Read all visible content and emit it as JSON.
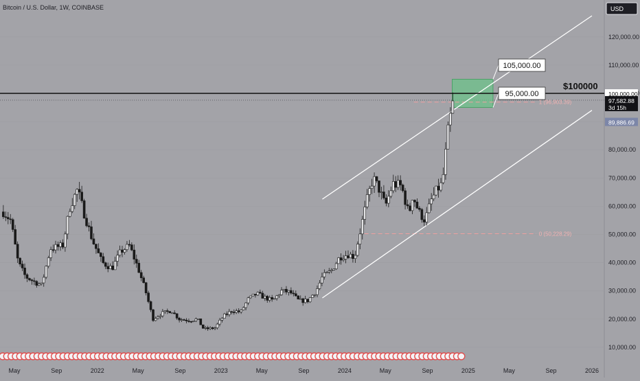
{
  "chart_data": {
    "type": "candlestick",
    "title": "Bitcoin / U.S. Dollar, 1W, COINBASE",
    "currency": "USD",
    "ylim": [
      0,
      132000
    ],
    "y_ticks": [
      {
        "value": 10000,
        "label": "10,000.00"
      },
      {
        "value": 20000,
        "label": "20,000.00"
      },
      {
        "value": 30000,
        "label": "30,000.00"
      },
      {
        "value": 40000,
        "label": "40,000.00"
      },
      {
        "value": 50000,
        "label": "50,000.00"
      },
      {
        "value": 60000,
        "label": "60,000.00"
      },
      {
        "value": 70000,
        "label": "70,000.00"
      },
      {
        "value": 80000,
        "label": "80,000.00"
      },
      {
        "value": 90000,
        "label": "90,000.00"
      },
      {
        "value": 100000,
        "label": "100,000.00"
      },
      {
        "value": 110000,
        "label": "110,000.00"
      },
      {
        "value": 120000,
        "label": "120,000.00"
      }
    ],
    "x_ticks": [
      {
        "t": 2021.33,
        "label": "May"
      },
      {
        "t": 2021.67,
        "label": "Sep"
      },
      {
        "t": 2022.0,
        "label": "2022"
      },
      {
        "t": 2022.33,
        "label": "May"
      },
      {
        "t": 2022.67,
        "label": "Sep"
      },
      {
        "t": 2023.0,
        "label": "2023"
      },
      {
        "t": 2023.33,
        "label": "May"
      },
      {
        "t": 2023.67,
        "label": "Sep"
      },
      {
        "t": 2024.0,
        "label": "2024"
      },
      {
        "t": 2024.33,
        "label": "May"
      },
      {
        "t": 2024.67,
        "label": "Sep"
      },
      {
        "t": 2025.0,
        "label": "2025"
      },
      {
        "t": 2025.33,
        "label": "May"
      },
      {
        "t": 2025.67,
        "label": "Sep"
      },
      {
        "t": 2026.0,
        "label": "2026"
      }
    ],
    "price_path": [
      [
        2021.24,
        58000
      ],
      [
        2021.3,
        55000
      ],
      [
        2021.36,
        40000
      ],
      [
        2021.42,
        35000
      ],
      [
        2021.5,
        33000
      ],
      [
        2021.55,
        32000
      ],
      [
        2021.62,
        45000
      ],
      [
        2021.72,
        46000
      ],
      [
        2021.78,
        60000
      ],
      [
        2021.84,
        66000
      ],
      [
        2021.89,
        58000
      ],
      [
        2021.96,
        48000
      ],
      [
        2022.04,
        40000
      ],
      [
        2022.12,
        38000
      ],
      [
        2022.19,
        44000
      ],
      [
        2022.26,
        46000
      ],
      [
        2022.33,
        38000
      ],
      [
        2022.39,
        30000
      ],
      [
        2022.45,
        20000
      ],
      [
        2022.52,
        22000
      ],
      [
        2022.6,
        23000
      ],
      [
        2022.66,
        20000
      ],
      [
        2022.75,
        19500
      ],
      [
        2022.81,
        20000
      ],
      [
        2022.86,
        16500
      ],
      [
        2022.95,
        16800
      ],
      [
        2023.02,
        21000
      ],
      [
        2023.09,
        23000
      ],
      [
        2023.16,
        22500
      ],
      [
        2023.22,
        27000
      ],
      [
        2023.29,
        29000
      ],
      [
        2023.36,
        27500
      ],
      [
        2023.42,
        26500
      ],
      [
        2023.49,
        30000
      ],
      [
        2023.56,
        29500
      ],
      [
        2023.63,
        26500
      ],
      [
        2023.7,
        26500
      ],
      [
        2023.77,
        30000
      ],
      [
        2023.82,
        35000
      ],
      [
        2023.89,
        37000
      ],
      [
        2023.96,
        42000
      ],
      [
        2024.03,
        43000
      ],
      [
        2024.08,
        42000
      ],
      [
        2024.13,
        52000
      ],
      [
        2024.18,
        62000
      ],
      [
        2024.23,
        70000
      ],
      [
        2024.28,
        66000
      ],
      [
        2024.33,
        60000
      ],
      [
        2024.39,
        68000
      ],
      [
        2024.46,
        67000
      ],
      [
        2024.52,
        57000
      ],
      [
        2024.55,
        64000
      ],
      [
        2024.6,
        58000
      ],
      [
        2024.65,
        55000
      ],
      [
        2024.7,
        62000
      ],
      [
        2024.75,
        66000
      ],
      [
        2024.79,
        68000
      ],
      [
        2024.84,
        88000
      ],
      [
        2024.88,
        97500
      ]
    ],
    "annotations": {
      "resistance_label": "$100000",
      "target_high_label": "105,000.00",
      "target_low_label": "95,000.00",
      "fib_top_label": "1 (96,903.39)",
      "fib_bottom_label": "0 (50,228.29)",
      "current_price_label": "97,582.88",
      "countdown_label": "3d 15h",
      "ma_label": "89,886.69",
      "level_100k_label": "100,000.00"
    },
    "levels": {
      "resistance": 100000,
      "fib_top": 96903.39,
      "fib_bottom": 50228.29,
      "current_price": 97582.88,
      "ma_value": 89886.69,
      "target_zone": {
        "t0": 2024.87,
        "t1": 2025.2,
        "low": 95000,
        "high": 105000
      }
    },
    "channel": {
      "upper": {
        "p1": [
          2023.82,
          62500
        ],
        "p2": [
          2026.0,
          127500
        ]
      },
      "lower": {
        "p1": [
          2023.82,
          27500
        ],
        "p2": [
          2026.0,
          94000
        ]
      }
    },
    "colors": {
      "background": "#a3a3a8",
      "up": "#1a1a1a",
      "down": "#1a1a1a",
      "channel": "#ffffff",
      "zone_fill": "#6cc18a",
      "zone_edge": "#4aa267",
      "fib_line": "#f0a0a0",
      "fib_text": "#f2b2b2",
      "resistance": "#111111",
      "event_marker": "#e05050"
    }
  }
}
